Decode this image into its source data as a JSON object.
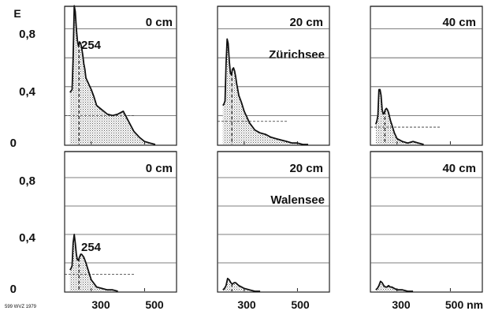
{
  "chart_data": {
    "type": "area",
    "ylabel": "E",
    "x_unit": "nm",
    "xlim": [
      200,
      620
    ],
    "ylim": [
      0,
      1.1
    ],
    "y_ticks": [
      {
        "value": 0,
        "label": "0"
      },
      {
        "value": 0.4,
        "label": "0,4"
      },
      {
        "value": 0.8,
        "label": "0,8"
      }
    ],
    "x_ticks": [
      {
        "value": 300,
        "label": "300"
      },
      {
        "value": 500,
        "label": "500"
      }
    ],
    "last_x_tick_label": "500 nm",
    "marker_x": 254,
    "footnote": "599 WVZ 1979",
    "panels": [
      {
        "row": 0,
        "col": 0,
        "depth_label": "0 cm",
        "lake_label": "",
        "peak_label": "254",
        "baseline": 0.2,
        "x": [
          220,
          224,
          228,
          232,
          236,
          240,
          244,
          248,
          252,
          256,
          260,
          264,
          268,
          272,
          276,
          280,
          290,
          300,
          310,
          320,
          340,
          360,
          380,
          400,
          420,
          440,
          460,
          480,
          500,
          520,
          540
        ],
        "y": [
          0.36,
          0.37,
          0.38,
          0.6,
          0.96,
          0.92,
          0.8,
          0.72,
          0.68,
          0.71,
          0.7,
          0.67,
          0.62,
          0.56,
          0.52,
          0.46,
          0.42,
          0.38,
          0.33,
          0.27,
          0.24,
          0.21,
          0.2,
          0.21,
          0.23,
          0.16,
          0.09,
          0.05,
          0.02,
          0.01,
          0.0
        ]
      },
      {
        "row": 0,
        "col": 1,
        "depth_label": "20 cm",
        "lake_label": "Zürichsee",
        "peak_label": "",
        "baseline": 0.16,
        "x": [
          220,
          224,
          228,
          232,
          236,
          240,
          244,
          248,
          252,
          256,
          260,
          264,
          268,
          272,
          276,
          280,
          290,
          300,
          320,
          340,
          360,
          380,
          400,
          420,
          440,
          460,
          480,
          500,
          520,
          540
        ],
        "y": [
          0.27,
          0.28,
          0.3,
          0.55,
          0.73,
          0.7,
          0.58,
          0.5,
          0.48,
          0.52,
          0.53,
          0.51,
          0.47,
          0.42,
          0.38,
          0.34,
          0.29,
          0.23,
          0.15,
          0.1,
          0.08,
          0.07,
          0.05,
          0.04,
          0.03,
          0.02,
          0.01,
          0.01,
          0.0,
          0.0
        ]
      },
      {
        "row": 0,
        "col": 2,
        "depth_label": "40 cm",
        "lake_label": "",
        "peak_label": "",
        "baseline": 0.12,
        "x": [
          220,
          224,
          228,
          232,
          236,
          240,
          244,
          248,
          252,
          256,
          260,
          264,
          268,
          272,
          276,
          280,
          290,
          300,
          320,
          340,
          360,
          380,
          400
        ],
        "y": [
          0.14,
          0.16,
          0.2,
          0.38,
          0.38,
          0.34,
          0.24,
          0.21,
          0.22,
          0.24,
          0.25,
          0.24,
          0.22,
          0.19,
          0.16,
          0.14,
          0.08,
          0.04,
          0.02,
          0.01,
          0.02,
          0.01,
          0.0
        ]
      },
      {
        "row": 1,
        "col": 0,
        "depth_label": "0 cm",
        "lake_label": "",
        "peak_label": "254",
        "baseline": 0.12,
        "x": [
          220,
          224,
          228,
          232,
          236,
          240,
          244,
          248,
          252,
          256,
          260,
          264,
          268,
          272,
          276,
          280,
          290,
          300,
          320,
          340,
          360,
          380,
          400
        ],
        "y": [
          0.15,
          0.16,
          0.18,
          0.34,
          0.4,
          0.34,
          0.26,
          0.22,
          0.22,
          0.24,
          0.26,
          0.26,
          0.25,
          0.24,
          0.22,
          0.2,
          0.14,
          0.08,
          0.03,
          0.02,
          0.01,
          0.01,
          0.0
        ]
      },
      {
        "row": 1,
        "col": 1,
        "depth_label": "20 cm",
        "lake_label": "Walensee",
        "peak_label": "",
        "baseline": null,
        "x": [
          220,
          226,
          232,
          238,
          244,
          250,
          256,
          262,
          268,
          274,
          280,
          290,
          300,
          320,
          340,
          360
        ],
        "y": [
          0.01,
          0.02,
          0.04,
          0.09,
          0.08,
          0.06,
          0.05,
          0.06,
          0.06,
          0.05,
          0.04,
          0.03,
          0.02,
          0.01,
          0.0,
          0.0
        ]
      },
      {
        "row": 1,
        "col": 2,
        "depth_label": "40 cm",
        "lake_label": "",
        "peak_label": "",
        "baseline": null,
        "x": [
          220,
          226,
          232,
          238,
          244,
          250,
          256,
          262,
          268,
          274,
          280,
          290,
          300,
          320,
          340,
          360
        ],
        "y": [
          0.01,
          0.02,
          0.04,
          0.07,
          0.06,
          0.04,
          0.03,
          0.03,
          0.04,
          0.03,
          0.03,
          0.02,
          0.01,
          0.01,
          0.0,
          0.0
        ]
      }
    ]
  }
}
